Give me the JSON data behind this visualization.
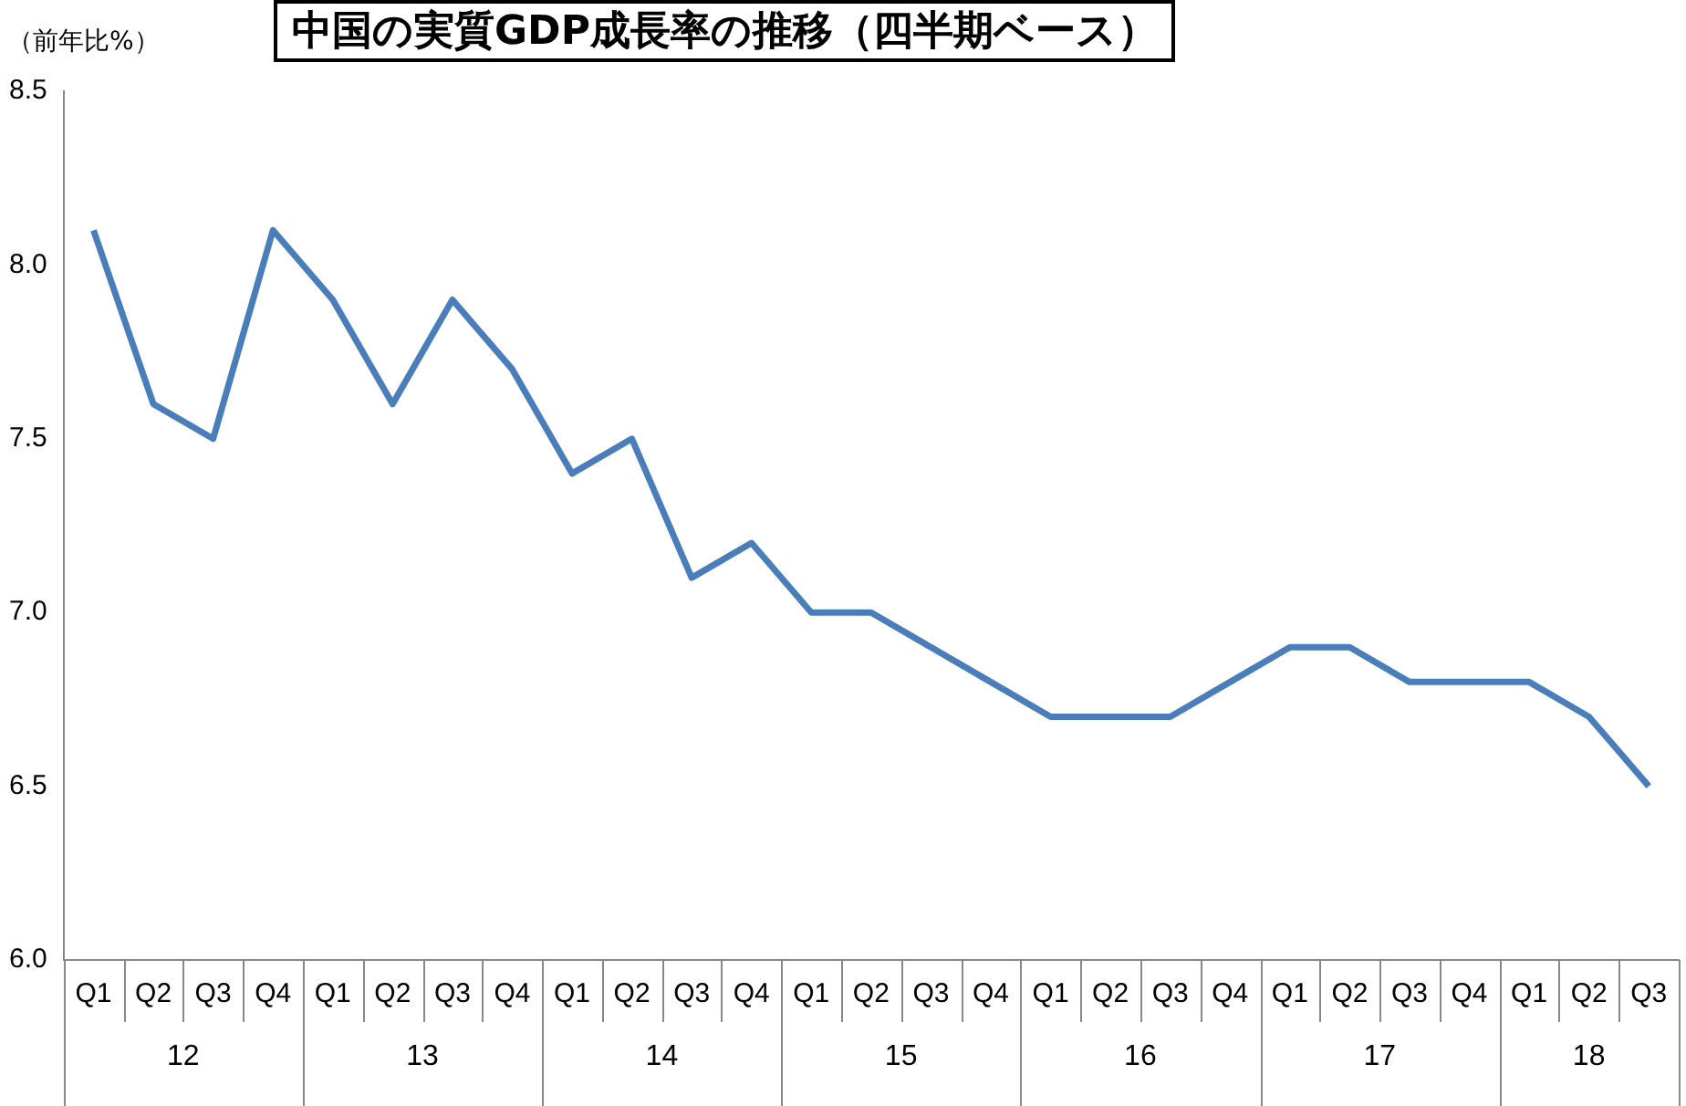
{
  "chart_data": {
    "type": "line",
    "title": "中国の実質GDP成長率の推移（四半期ベース）",
    "ylabel": "（前年比%）",
    "categories": [
      "Q1",
      "Q2",
      "Q3",
      "Q4",
      "Q1",
      "Q2",
      "Q3",
      "Q4",
      "Q1",
      "Q2",
      "Q3",
      "Q4",
      "Q1",
      "Q2",
      "Q3",
      "Q4",
      "Q1",
      "Q2",
      "Q3",
      "Q4",
      "Q1",
      "Q2",
      "Q3",
      "Q4",
      "Q1",
      "Q2",
      "Q3"
    ],
    "series": [
      {
        "color": "#4a7ebb",
        "values": [
          8.1,
          7.6,
          7.5,
          8.1,
          7.9,
          7.6,
          7.9,
          7.7,
          7.4,
          7.5,
          7.1,
          7.2,
          7.0,
          7.0,
          6.9,
          6.8,
          6.7,
          6.7,
          6.7,
          6.8,
          6.9,
          6.9,
          6.8,
          6.8,
          6.8,
          6.7,
          6.5
        ]
      }
    ],
    "annotations": [
      "12",
      "13",
      "14",
      "15",
      "16",
      "17",
      "18"
    ],
    "ylim": [
      6.0,
      8.5
    ],
    "yticks": [
      {
        "value": 6,
        "label": "6.0"
      },
      {
        "value": 6.5,
        "label": "6.5"
      },
      {
        "value": 7,
        "label": "7.0"
      },
      {
        "value": 7.5,
        "label": "7.5"
      },
      {
        "value": 8,
        "label": "8.0"
      },
      {
        "value": 8.5,
        "label": "8.5"
      }
    ],
    "grid": false,
    "legend": false,
    "marker": "none",
    "line_style": "solid"
  }
}
